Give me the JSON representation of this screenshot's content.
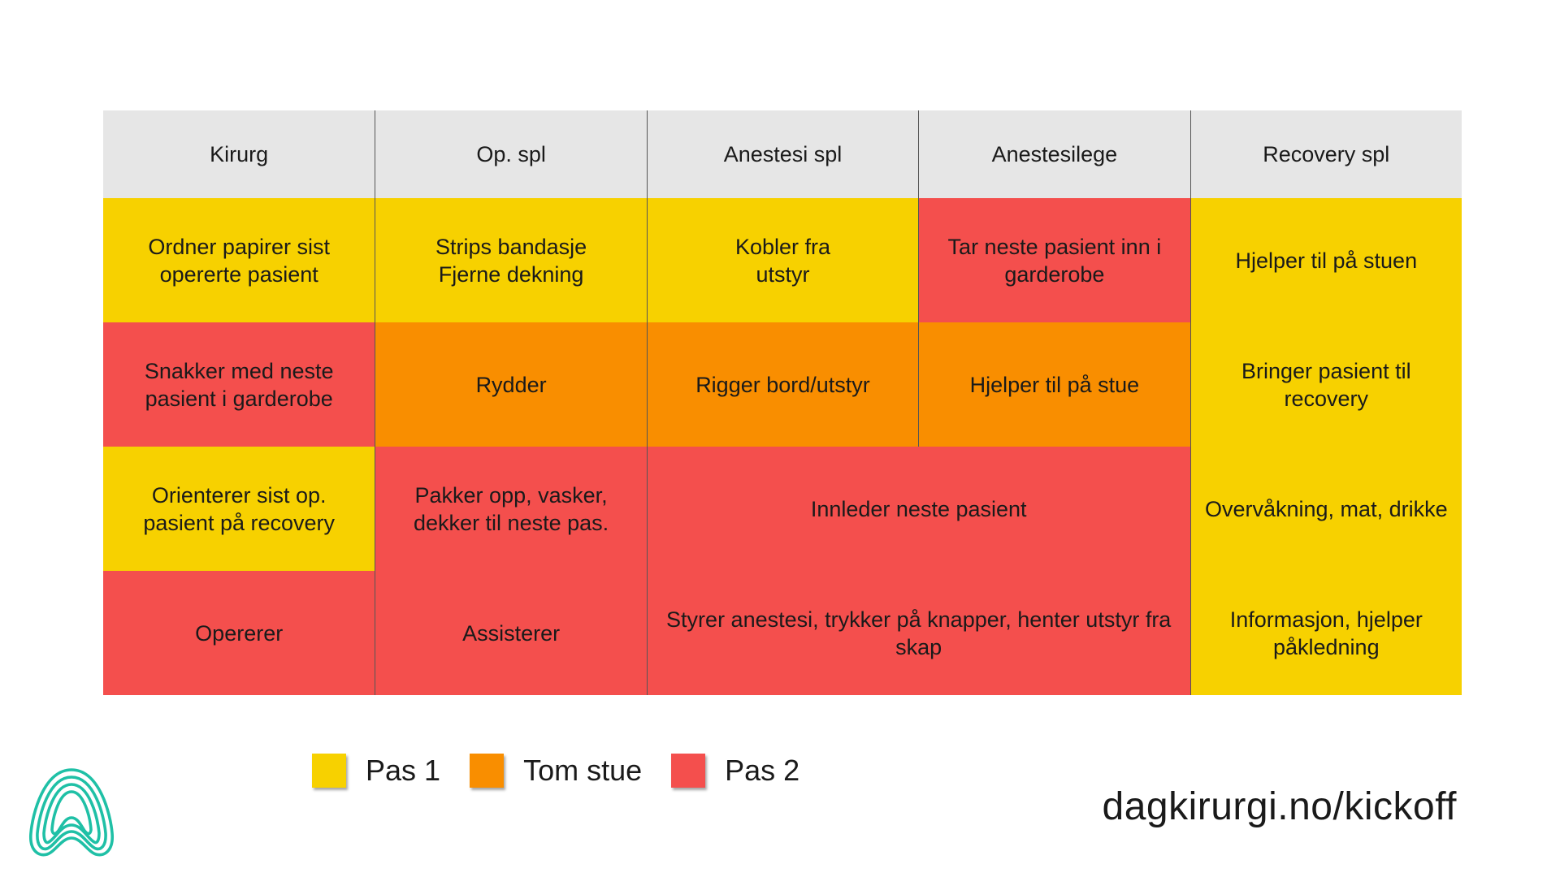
{
  "colors": {
    "pas1": "#f7d100",
    "tom_stue": "#f98e00",
    "pas2": "#f44f4d",
    "header_bg": "#e6e6e6"
  },
  "table": {
    "headers": [
      "Kirurg",
      "Op. spl",
      "Anestesi spl",
      "Anestesilege",
      "Recovery spl"
    ],
    "cells": [
      {
        "text": "Ordner papirer sist\nopererte pasient",
        "status": "pas1"
      },
      {
        "text": "Strips bandasje\nFjerne dekning",
        "status": "pas1"
      },
      {
        "text": "Kobler fra\nutstyr",
        "status": "pas1"
      },
      {
        "text": "Tar neste pasient inn i\ngarderobe",
        "status": "pas2"
      },
      {
        "text": "Hjelper til på stuen",
        "status": "pas1"
      },
      {
        "text": "Snakker med neste\npasient i garderobe",
        "status": "pas2"
      },
      {
        "text": "Rydder",
        "status": "tom_stue"
      },
      {
        "text": "Rigger bord/utstyr",
        "status": "tom_stue"
      },
      {
        "text": "Hjelper til på stue",
        "status": "tom_stue"
      },
      {
        "text": "Bringer pasient til\nrecovery",
        "status": "pas1"
      },
      {
        "text": "Orienterer sist op.\npasient på recovery",
        "status": "pas1"
      },
      {
        "text": "Pakker opp, vasker,\ndekker til neste pas.",
        "status": "pas2"
      },
      {
        "text": "Innleder neste pasient",
        "status": "pas2"
      },
      {
        "text": "Overvåkning, mat, drikke",
        "status": "pas1"
      },
      {
        "text": "Opererer",
        "status": "pas2"
      },
      {
        "text": "Assisterer",
        "status": "pas2"
      },
      {
        "text": "Styrer anestesi, trykker på knapper, henter utstyr fra\nskap",
        "status": "pas2"
      },
      {
        "text": "Informasjon, hjelper\npåkledning",
        "status": "pas1"
      }
    ]
  },
  "legend": [
    {
      "label": "Pas 1",
      "status": "pas1"
    },
    {
      "label": "Tom stue",
      "status": "tom_stue"
    },
    {
      "label": "Pas 2",
      "status": "pas2"
    }
  ],
  "footer": {
    "url": "dagkirurgi.no/kickoff"
  },
  "logo": {
    "icon": "dagkirurgi-logo-icon",
    "color": "#1fc0a6"
  }
}
